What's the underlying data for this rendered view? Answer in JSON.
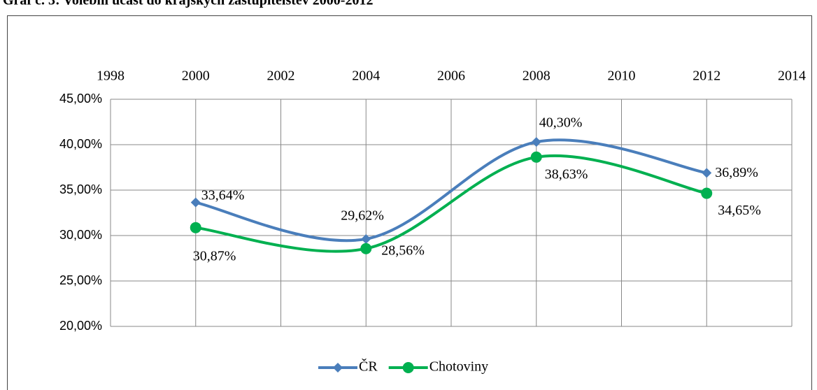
{
  "chart_data": {
    "type": "line",
    "title": "Graf č. 3: Volební účast do krajských zastupitelstev 2000-2012",
    "x": [
      2000,
      2004,
      2008,
      2012
    ],
    "series": [
      {
        "name": "ČR",
        "color": "#4a7ebb",
        "values": [
          33.64,
          29.62,
          40.3,
          36.89
        ],
        "value_labels": [
          "33,64%",
          "29,62%",
          "40,30%",
          "36,89%"
        ]
      },
      {
        "name": "Chotoviny",
        "color": "#00b050",
        "values": [
          30.87,
          28.56,
          38.63,
          34.65
        ],
        "value_labels": [
          "30,87%",
          "28,56%",
          "38,63%",
          "34,65%"
        ]
      }
    ],
    "xlim": [
      1998,
      2014
    ],
    "xticks": [
      1998,
      2000,
      2002,
      2004,
      2006,
      2008,
      2010,
      2012,
      2014
    ],
    "ylim": [
      20,
      45
    ],
    "yticks": [
      {
        "value": 20,
        "label": "20,00%"
      },
      {
        "value": 25,
        "label": "25,00%"
      },
      {
        "value": 30,
        "label": "30,00%"
      },
      {
        "value": 35,
        "label": "35,00%"
      },
      {
        "value": 40,
        "label": "40,00%"
      },
      {
        "value": 45,
        "label": "45,00%"
      }
    ],
    "grid": true,
    "legend": "bottom",
    "smooth": true
  }
}
